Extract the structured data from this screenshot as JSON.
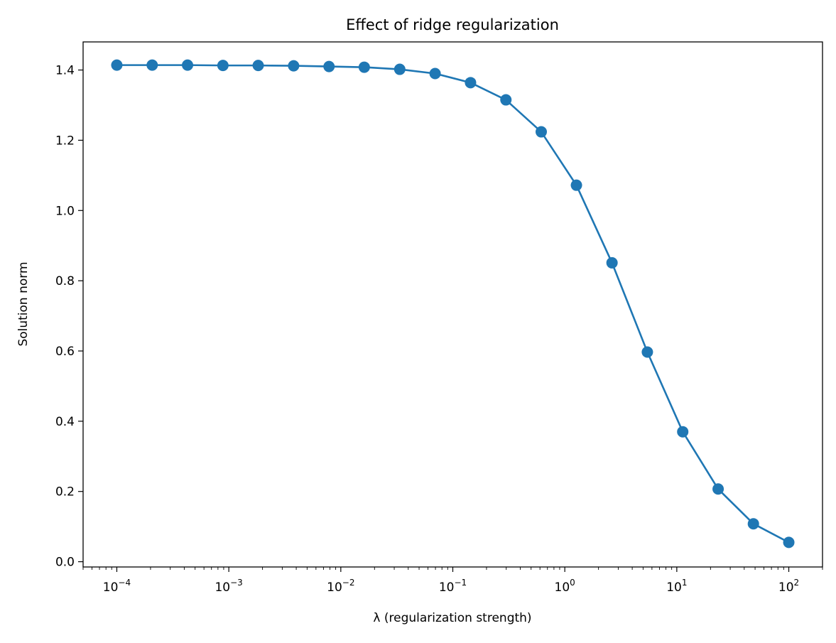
{
  "chart_data": {
    "type": "line",
    "title": "Effect of ridge regularization",
    "xlabel": "λ (regularization strength)",
    "ylabel": "Solution norm",
    "xscale": "log",
    "xlim": [
      5e-05,
      200
    ],
    "ylim": [
      -0.015,
      1.48
    ],
    "x_ticks": [
      {
        "value": 0.0001,
        "base": "10",
        "exp": "−4"
      },
      {
        "value": 0.001,
        "base": "10",
        "exp": "−3"
      },
      {
        "value": 0.01,
        "base": "10",
        "exp": "−2"
      },
      {
        "value": 0.1,
        "base": "10",
        "exp": "−1"
      },
      {
        "value": 1,
        "base": "10",
        "exp": "0"
      },
      {
        "value": 10,
        "base": "10",
        "exp": "1"
      },
      {
        "value": 100,
        "base": "10",
        "exp": "2"
      }
    ],
    "y_ticks": [
      {
        "value": 0.0,
        "label": "0.0"
      },
      {
        "value": 0.2,
        "label": "0.2"
      },
      {
        "value": 0.4,
        "label": "0.4"
      },
      {
        "value": 0.6,
        "label": "0.6"
      },
      {
        "value": 0.8,
        "label": "0.8"
      },
      {
        "value": 1.0,
        "label": "1.0"
      },
      {
        "value": 1.2,
        "label": "1.2"
      },
      {
        "value": 1.4,
        "label": "1.4"
      }
    ],
    "grid": false,
    "series": [
      {
        "color": "#1f77b4",
        "marker": "circle",
        "x": [
          0.0001,
          0.000207,
          0.000428,
          0.000886,
          0.00183,
          0.00379,
          0.00785,
          0.0162,
          0.0336,
          0.0695,
          0.144,
          0.298,
          0.616,
          1.27,
          2.64,
          5.46,
          11.3,
          23.4,
          48.3,
          100
        ],
        "y": [
          1.414,
          1.414,
          1.414,
          1.413,
          1.413,
          1.412,
          1.41,
          1.408,
          1.402,
          1.39,
          1.364,
          1.315,
          1.224,
          1.072,
          0.851,
          0.597,
          0.37,
          0.207,
          0.108,
          0.055
        ]
      }
    ]
  }
}
